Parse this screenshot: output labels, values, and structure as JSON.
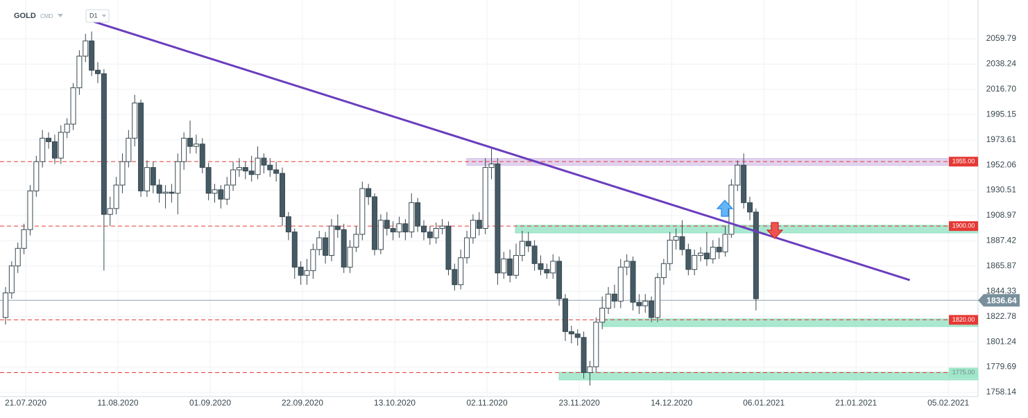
{
  "chart_data": {
    "type": "candlestick",
    "symbol": "GOLD",
    "market": "CMD",
    "interval": "D1",
    "open": [
      1822,
      1843,
      1866,
      1881,
      1897,
      1930,
      1955,
      1975,
      1972,
      1958,
      1980,
      1987,
      2018,
      2045,
      2058,
      2033,
      2030,
      1910,
      1915,
      1935,
      1955,
      1975,
      2005,
      1930,
      1950,
      1935,
      1928,
      1929,
      1928,
      1955,
      1975,
      1968,
      1970,
      1950,
      1928,
      1931,
      1923,
      1935,
      1948,
      1950,
      1947,
      1944,
      1958,
      1952,
      1948,
      1945,
      1908,
      1895,
      1865,
      1858,
      1862,
      1880,
      1890,
      1875,
      1900,
      1897,
      1865,
      1882,
      1893,
      1932,
      1925,
      1880,
      1905,
      1898,
      1895,
      1902,
      1895,
      1920,
      1900,
      1895,
      1890,
      1898,
      1900,
      1863,
      1850,
      1873,
      1890,
      1905,
      1898,
      1950,
      1953,
      1860,
      1872,
      1858,
      1875,
      1887,
      1883,
      1868,
      1863,
      1860,
      1870,
      1838,
      1810,
      1808,
      1805,
      1775,
      1780,
      1818,
      1830,
      1842,
      1836,
      1865,
      1870,
      1835,
      1832,
      1836,
      1822,
      1856,
      1868,
      1888,
      1891,
      1880,
      1863,
      1875,
      1877,
      1872,
      1882,
      1878,
      1893,
      1935,
      1952,
      1920,
      1912
    ],
    "high": [
      1848,
      1870,
      1886,
      1902,
      1935,
      1960,
      1982,
      1980,
      1978,
      1986,
      1992,
      2022,
      2050,
      2064,
      2066,
      2040,
      2034,
      1925,
      1942,
      1962,
      1982,
      2012,
      2008,
      1956,
      1955,
      1940,
      1935,
      1936,
      1962,
      1980,
      1990,
      1978,
      1975,
      1954,
      1936,
      1935,
      1942,
      1955,
      1958,
      1955,
      1960,
      1968,
      1962,
      1958,
      1955,
      1950,
      1912,
      1898,
      1870,
      1872,
      1885,
      1896,
      1895,
      1906,
      1910,
      1902,
      1888,
      1900,
      1938,
      1936,
      1928,
      1910,
      1912,
      1904,
      1908,
      1906,
      1928,
      1924,
      1905,
      1900,
      1903,
      1906,
      1904,
      1868,
      1880,
      1896,
      1910,
      1912,
      1958,
      1966,
      1958,
      1878,
      1880,
      1885,
      1896,
      1895,
      1888,
      1875,
      1868,
      1876,
      1874,
      1842,
      1815,
      1812,
      1810,
      1785,
      1822,
      1840,
      1848,
      1850,
      1872,
      1876,
      1874,
      1842,
      1842,
      1840,
      1860,
      1872,
      1895,
      1898,
      1905,
      1885,
      1880,
      1882,
      1895,
      1888,
      1890,
      1900,
      1940,
      1956,
      1962,
      1925,
      1915
    ],
    "low": [
      1816,
      1838,
      1860,
      1876,
      1892,
      1925,
      1950,
      1966,
      1953,
      1953,
      1975,
      1982,
      2012,
      2040,
      2028,
      2022,
      1862,
      1900,
      1910,
      1928,
      1950,
      1968,
      1925,
      1925,
      1928,
      1920,
      1915,
      1920,
      1910,
      1948,
      1962,
      1962,
      1945,
      1922,
      1920,
      1915,
      1918,
      1930,
      1942,
      1940,
      1938,
      1940,
      1945,
      1942,
      1938,
      1900,
      1888,
      1855,
      1850,
      1850,
      1855,
      1875,
      1868,
      1870,
      1890,
      1860,
      1860,
      1878,
      1888,
      1918,
      1875,
      1876,
      1892,
      1888,
      1890,
      1888,
      1890,
      1895,
      1888,
      1884,
      1885,
      1893,
      1858,
      1845,
      1846,
      1868,
      1885,
      1892,
      1893,
      1940,
      1850,
      1855,
      1852,
      1855,
      1870,
      1878,
      1862,
      1858,
      1855,
      1855,
      1832,
      1802,
      1800,
      1798,
      1770,
      1764,
      1775,
      1812,
      1825,
      1830,
      1830,
      1858,
      1828,
      1825,
      1826,
      1818,
      1818,
      1850,
      1862,
      1880,
      1875,
      1858,
      1858,
      1870,
      1866,
      1868,
      1872,
      1874,
      1890,
      1930,
      1915,
      1905,
      1828
    ],
    "close": [
      1843,
      1866,
      1881,
      1897,
      1930,
      1955,
      1975,
      1972,
      1958,
      1980,
      1987,
      2018,
      2045,
      2058,
      2033,
      2030,
      1910,
      1915,
      1935,
      1955,
      1975,
      2005,
      1930,
      1950,
      1935,
      1928,
      1929,
      1928,
      1955,
      1975,
      1968,
      1970,
      1950,
      1928,
      1931,
      1923,
      1935,
      1948,
      1950,
      1947,
      1944,
      1958,
      1952,
      1948,
      1945,
      1908,
      1895,
      1865,
      1858,
      1862,
      1880,
      1890,
      1875,
      1900,
      1897,
      1865,
      1882,
      1893,
      1932,
      1925,
      1880,
      1905,
      1898,
      1895,
      1902,
      1895,
      1920,
      1900,
      1895,
      1890,
      1898,
      1900,
      1863,
      1850,
      1873,
      1890,
      1905,
      1898,
      1950,
      1953,
      1860,
      1872,
      1858,
      1875,
      1887,
      1883,
      1868,
      1863,
      1860,
      1870,
      1838,
      1810,
      1808,
      1805,
      1775,
      1780,
      1818,
      1830,
      1842,
      1836,
      1865,
      1870,
      1835,
      1832,
      1836,
      1822,
      1856,
      1868,
      1888,
      1891,
      1880,
      1863,
      1875,
      1877,
      1872,
      1882,
      1878,
      1893,
      1935,
      1952,
      1920,
      1912,
      1838
    ],
    "up_color": "#ffffff",
    "down_color": "#455a64",
    "wick_color": "#37474f",
    "xlim": [
      -0.9,
      158.1
    ],
    "xticks": [
      {
        "value": 3.27,
        "label": "21.07.2020"
      },
      {
        "value": 18.27,
        "label": "11.08.2020"
      },
      {
        "value": 33.27,
        "label": "01.09.2020"
      },
      {
        "value": 48.27,
        "label": "22.09.2020"
      },
      {
        "value": 63.27,
        "label": "13.10.2020"
      },
      {
        "value": 78.27,
        "label": "02.11.2020"
      },
      {
        "value": 93.27,
        "label": "23.11.2020"
      },
      {
        "value": 108.27,
        "label": "14.12.2020"
      },
      {
        "value": 123.27,
        "label": "06.01.2021"
      },
      {
        "value": 138.27,
        "label": "21.01.2021"
      },
      {
        "value": 153.27,
        "label": "05.02.2021"
      }
    ],
    "ylim": [
      1754.6,
      2092.9
    ],
    "yticks": [
      2059.79,
      2038.24,
      {
        "value": 2016.7,
        "label": "2016.70"
      },
      1995.15,
      1973.61,
      1952.06,
      1930.51,
      1908.97,
      1887.42,
      1865.87,
      1844.33,
      1822.78,
      1801.24,
      1779.69,
      1758.14
    ],
    "grid": true,
    "current_price": 1836.64,
    "levels": [
      {
        "price": {
          "value": 1955,
          "label": "1955.00"
        },
        "zone": [
          1951.8,
          1957.7
        ],
        "zone_start": 74.97,
        "zone_color": "#d7c3ea",
        "label_color": "#e53935"
      },
      {
        "price": {
          "value": 1900,
          "label": "1900.00"
        },
        "zone": [
          1894.2,
          1900.7
        ],
        "zone_start": 82.9,
        "zone_color": "#8fe0c0",
        "label_color": "#e53935"
      },
      {
        "price": {
          "value": 1820,
          "label": "1820.00"
        },
        "zone": [
          1814.3,
          1820.8
        ],
        "zone_start": 97.0,
        "zone_color": "#8fe0c0",
        "label_color": "#e53935"
      },
      {
        "price": {
          "value": 1775,
          "label": "1775.00"
        },
        "zone": [
          1768.8,
          1775.3
        ],
        "zone_start": 90.0,
        "zone_color": "#8fe0c0",
        "label_color": "#9ee6c8"
      }
    ],
    "trendline": {
      "x": [
        13.87,
        147.0
      ],
      "y": [
        2075.2,
        1853.95
      ],
      "color": "#6a3dbd"
    }
  }
}
